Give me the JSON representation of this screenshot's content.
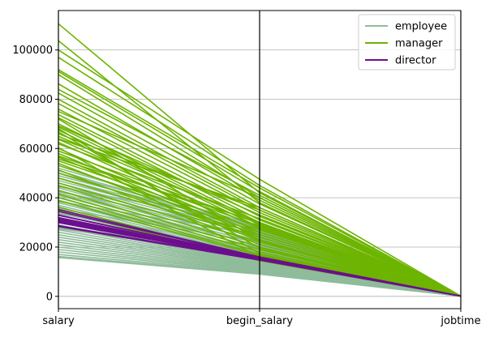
{
  "chart_data": {
    "type": "parallel_coordinates",
    "axes": [
      "salary",
      "begin_salary",
      "jobtime"
    ],
    "ylim": [
      -5000,
      116000
    ],
    "yticks": [
      0,
      20000,
      40000,
      60000,
      80000,
      100000
    ],
    "ytick_labels": [
      "0",
      "20000",
      "40000",
      "60000",
      "80000",
      "100000"
    ],
    "grid": true,
    "legend_placement": "top-right",
    "legend": [
      {
        "name": "employee",
        "color": "#8fbc9a"
      },
      {
        "name": "manager",
        "color": "#6cb400"
      },
      {
        "name": "director",
        "color": "#6b0f8e"
      }
    ],
    "series": [
      {
        "name": "employee",
        "color": "#8fbc9a",
        "lines": [
          [
            15750,
            9000,
            81
          ],
          [
            16200,
            9300,
            85
          ],
          [
            17000,
            9600,
            90
          ],
          [
            18000,
            9900,
            78
          ],
          [
            19000,
            10200,
            95
          ],
          [
            20000,
            10500,
            88
          ],
          [
            21000,
            10800,
            70
          ],
          [
            22000,
            11100,
            92
          ],
          [
            23000,
            11400,
            80
          ],
          [
            24000,
            11700,
            86
          ],
          [
            25000,
            12000,
            75
          ],
          [
            26000,
            12300,
            91
          ],
          [
            27000,
            12600,
            83
          ],
          [
            28000,
            12900,
            77
          ],
          [
            29000,
            13200,
            94
          ],
          [
            30000,
            13500,
            87
          ],
          [
            31000,
            14000,
            79
          ],
          [
            32000,
            14500,
            93
          ],
          [
            33000,
            15000,
            72
          ],
          [
            34000,
            15500,
            89
          ],
          [
            35000,
            16000,
            84
          ],
          [
            36000,
            16500,
            76
          ],
          [
            37000,
            17000,
            96
          ],
          [
            38000,
            17500,
            82
          ],
          [
            39000,
            18000,
            90
          ],
          [
            40000,
            18500,
            74
          ],
          [
            41000,
            19500,
            88
          ],
          [
            42000,
            20500,
            81
          ],
          [
            43000,
            21500,
            93
          ],
          [
            44000,
            22500,
            86
          ],
          [
            45000,
            23500,
            78
          ],
          [
            46000,
            24500,
            91
          ],
          [
            47000,
            25500,
            84
          ],
          [
            48000,
            26500,
            79
          ],
          [
            49000,
            27500,
            95
          ],
          [
            50000,
            28000,
            87
          ],
          [
            51000,
            27000,
            73
          ],
          [
            52000,
            28500,
            89
          ],
          [
            44500,
            29000,
            82
          ],
          [
            42500,
            26000,
            90
          ],
          [
            38500,
            25000,
            76
          ],
          [
            35500,
            22000,
            94
          ],
          [
            33500,
            20000,
            85
          ],
          [
            30500,
            18500,
            80
          ],
          [
            27500,
            16000,
            92
          ]
        ]
      },
      {
        "name": "manager",
        "color": "#6cb400",
        "lines": [
          [
            110625,
            42000,
            98
          ],
          [
            103750,
            38000,
            96
          ],
          [
            100000,
            47500,
            91
          ],
          [
            97000,
            45000,
            88
          ],
          [
            92000,
            44000,
            85
          ],
          [
            91250,
            42500,
            93
          ],
          [
            90000,
            40000,
            89
          ],
          [
            86250,
            39000,
            97
          ],
          [
            84000,
            41000,
            90
          ],
          [
            82500,
            37500,
            86
          ],
          [
            80000,
            36000,
            94
          ],
          [
            78250,
            35000,
            87
          ],
          [
            76000,
            34000,
            92
          ],
          [
            75000,
            40000,
            83
          ],
          [
            73750,
            32500,
            95
          ],
          [
            72500,
            31000,
            88
          ],
          [
            70000,
            30000,
            91
          ],
          [
            69250,
            33000,
            84
          ],
          [
            68750,
            29000,
            96
          ],
          [
            67500,
            28000,
            89
          ],
          [
            66000,
            35000,
            93
          ],
          [
            65000,
            30000,
            85
          ],
          [
            63750,
            27500,
            97
          ],
          [
            62500,
            26000,
            90
          ],
          [
            61875,
            31500,
            86
          ],
          [
            60000,
            25000,
            94
          ],
          [
            59000,
            29500,
            88
          ],
          [
            58000,
            24000,
            92
          ],
          [
            57000,
            28500,
            83
          ],
          [
            56550,
            23000,
            95
          ],
          [
            55000,
            27000,
            87
          ],
          [
            54000,
            22500,
            91
          ],
          [
            53125,
            26000,
            84
          ],
          [
            51250,
            21000,
            96
          ],
          [
            50000,
            25000,
            89
          ],
          [
            48000,
            24000,
            93
          ],
          [
            46000,
            22000,
            85
          ],
          [
            45000,
            20000,
            97
          ],
          [
            43000,
            19000,
            90
          ],
          [
            41500,
            18000,
            86
          ],
          [
            40200,
            17000,
            94
          ],
          [
            38850,
            16500,
            88
          ],
          [
            36250,
            15000,
            92
          ],
          [
            34800,
            14500,
            83
          ],
          [
            60375,
            15750,
            95
          ],
          [
            68125,
            17250,
            87
          ],
          [
            72000,
            22500,
            91
          ],
          [
            66750,
            19500,
            84
          ],
          [
            55750,
            30000,
            96
          ],
          [
            64000,
            36000,
            89
          ]
        ]
      },
      {
        "name": "director",
        "color": "#6b0f8e",
        "lines": [
          [
            35250,
            16000,
            90
          ],
          [
            34500,
            15900,
            85
          ],
          [
            33000,
            15750,
            93
          ],
          [
            32000,
            15600,
            88
          ],
          [
            31500,
            15500,
            81
          ],
          [
            31250,
            15450,
            96
          ],
          [
            30750,
            15300,
            86
          ],
          [
            30300,
            15200,
            79
          ],
          [
            29900,
            15000,
            92
          ],
          [
            28750,
            14900,
            84
          ],
          [
            28350,
            14700,
            89
          ],
          [
            32850,
            15800,
            77
          ]
        ]
      }
    ]
  }
}
